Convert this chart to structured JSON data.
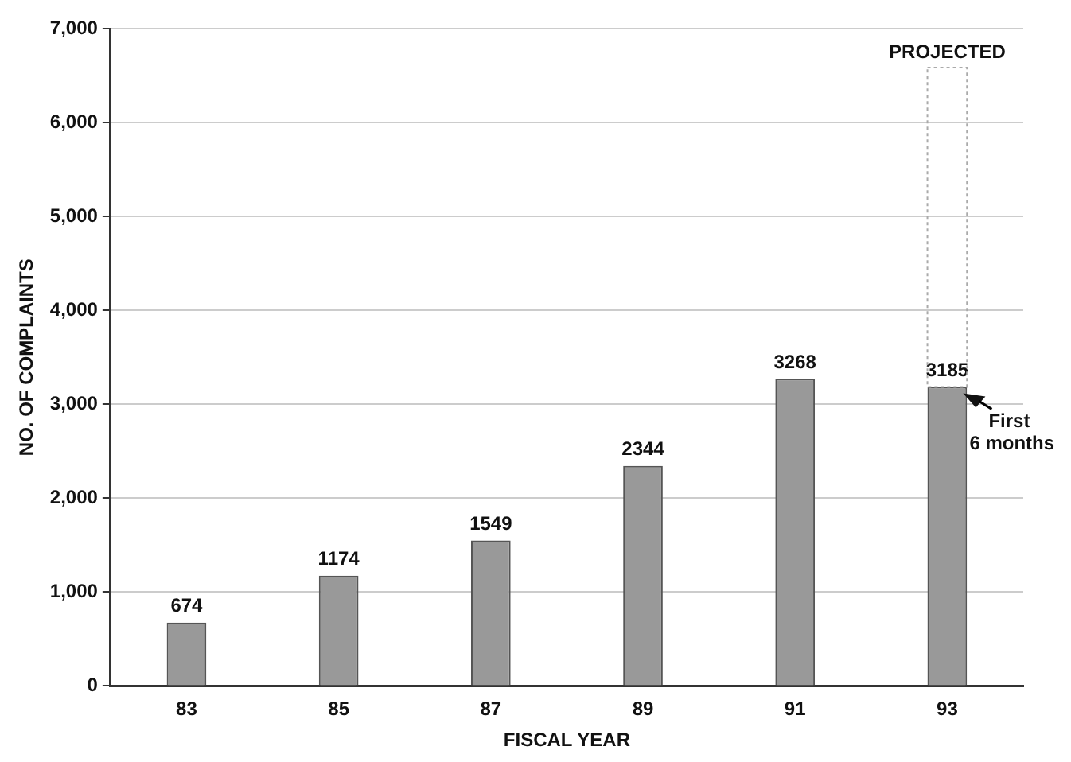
{
  "chart_data": {
    "type": "bar",
    "xlabel": "FISCAL YEAR",
    "ylabel": "NO. OF COMPLAINTS",
    "categories": [
      "83",
      "85",
      "87",
      "89",
      "91",
      "93"
    ],
    "stacked": true,
    "series": [
      {
        "color": "#999999",
        "values": [
          674,
          1174,
          1549,
          2344,
          3268,
          3185
        ],
        "value_labels": [
          "674",
          "1174",
          "1549",
          "2344",
          "3268",
          "3185"
        ]
      },
      {
        "color": "#aaaaaa",
        "values": [
          null,
          null,
          null,
          null,
          null,
          3400
        ],
        "line_style": "dotted"
      }
    ],
    "ylim": [
      0,
      7000
    ],
    "yticks": [
      0,
      {
        "value": 1000,
        "label": "1,000"
      },
      {
        "value": 2000,
        "label": "2,000"
      },
      {
        "value": 3000,
        "label": "3,000"
      },
      {
        "value": 4000,
        "label": "4,000"
      },
      {
        "value": 5000,
        "label": "5,000"
      },
      {
        "value": 6000,
        "label": "6,000"
      },
      {
        "value": 7000,
        "label": "7,000"
      }
    ],
    "grid": "y",
    "annotations": [
      {
        "text": "PROJECTED",
        "x": "93",
        "y": 6570
      },
      {
        "text": "First\n6 months",
        "x": "93",
        "y": 3185
      }
    ]
  }
}
